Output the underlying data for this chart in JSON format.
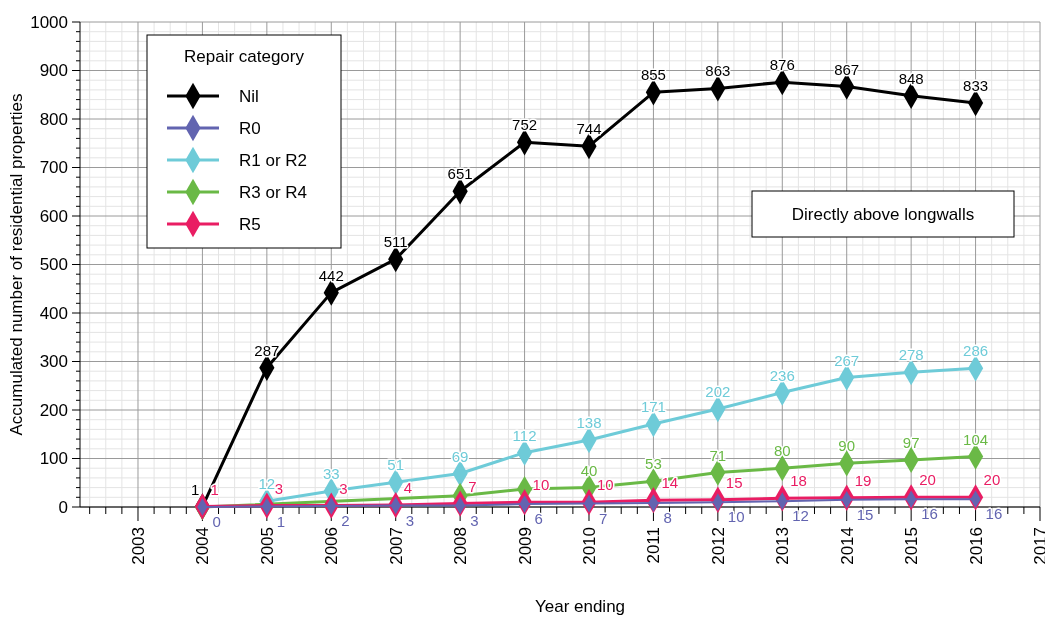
{
  "chart_data": {
    "type": "line",
    "xlabel": "Year ending",
    "ylabel": "Accumulated number of residential properties",
    "legend_title": "Repair category",
    "x": [
      2004,
      2005,
      2006,
      2007,
      2008,
      2009,
      2010,
      2011,
      2012,
      2013,
      2014,
      2015,
      2016
    ],
    "series": [
      {
        "name": "Nil",
        "color": "#000000",
        "values": [
          1,
          287,
          442,
          511,
          651,
          752,
          744,
          855,
          863,
          876,
          867,
          848,
          833
        ],
        "value_labels": [
          "1",
          "287",
          "442",
          "511",
          "651",
          "752",
          "744",
          "855",
          "863",
          "876",
          "867",
          "848",
          "833"
        ]
      },
      {
        "name": "R0",
        "color": "#6264b0",
        "values": [
          0,
          1,
          2,
          3,
          3,
          6,
          7,
          8,
          10,
          12,
          15,
          16,
          16
        ],
        "value_labels": [
          "0",
          "1",
          "2",
          "3",
          "3",
          "6",
          "7",
          "8",
          "10",
          "12",
          "15",
          "16",
          "16"
        ]
      },
      {
        "name": "R1 or R2",
        "color": "#6ecbd8",
        "values": [
          null,
          12,
          33,
          51,
          69,
          112,
          138,
          171,
          202,
          236,
          267,
          278,
          286
        ],
        "value_labels": [
          null,
          "12",
          "33",
          "51",
          "69",
          "112",
          "138",
          "171",
          "202",
          "236",
          "267",
          "278",
          "286"
        ]
      },
      {
        "name": "R3 or R4",
        "color": "#6ab946",
        "values": [
          0,
          null,
          null,
          null,
          23,
          37,
          40,
          53,
          71,
          80,
          90,
          97,
          104
        ],
        "value_labels": [
          null,
          null,
          null,
          null,
          null,
          null,
          "40",
          "53",
          "71",
          "80",
          "90",
          "97",
          "104"
        ]
      },
      {
        "name": "R5",
        "color": "#e91d63",
        "values": [
          1,
          3,
          3,
          4,
          7,
          10,
          10,
          14,
          15,
          18,
          19,
          20,
          20
        ],
        "value_labels": [
          "1",
          "3",
          "3",
          "4",
          "7",
          "10",
          "10",
          "14",
          "15",
          "18",
          "19",
          "20",
          "20"
        ]
      }
    ],
    "xlim": [
      2002.1,
      2017
    ],
    "xticks": [
      2003,
      2004,
      2005,
      2006,
      2007,
      2008,
      2009,
      2010,
      2011,
      2012,
      2013,
      2014,
      2015,
      2016,
      2017
    ],
    "ylim": [
      0,
      1000
    ],
    "yticks": [
      0,
      100,
      200,
      300,
      400,
      500,
      600,
      700,
      800,
      900,
      1000
    ],
    "grid": true,
    "legend": "top left",
    "marker": "diamond",
    "line_style": "solid",
    "annotations": [
      "Directly above longwalls"
    ]
  }
}
